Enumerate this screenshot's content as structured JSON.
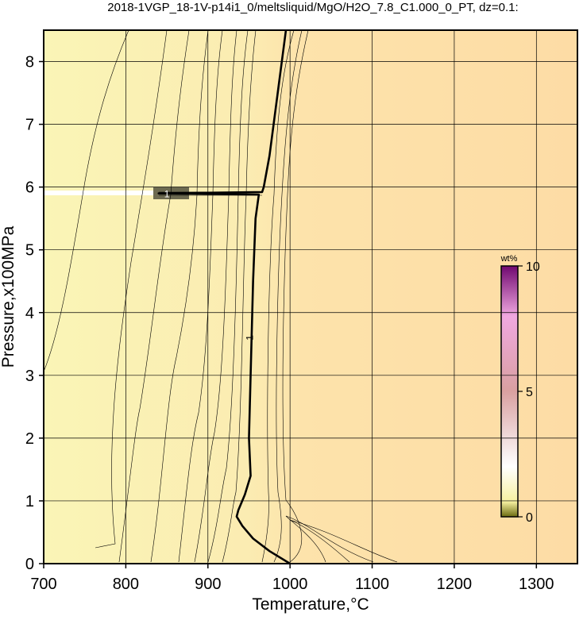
{
  "chart_data": {
    "type": "contour",
    "title": "2018-1VGP_18-1V-p14i1_0/meltsliquid/MgO/H2O_7.8_C1.000_0_PT, dz=0.1:",
    "x_label": "Temperature,°C",
    "y_label": "Pressure,x100MPa",
    "xlim": [
      700,
      1350
    ],
    "ylim": [
      0,
      8.5
    ],
    "xticks": [
      700,
      800,
      900,
      1000,
      1100,
      1200,
      1300
    ],
    "yticks": [
      0,
      1,
      2,
      3,
      4,
      5,
      6,
      7,
      8
    ],
    "grid": true,
    "level": 1,
    "series": [
      {
        "color": "#000000",
        "x": [
          995,
          985,
          975,
          968,
          966,
          900,
          840,
          900,
          962,
          958,
          955,
          953,
          951,
          950,
          952,
          945,
          937,
          935,
          942,
          955,
          975,
          1000
        ],
        "values": [
          8.5,
          7.5,
          6.5,
          6.0,
          5.92,
          5.91,
          5.9,
          5.89,
          5.88,
          5.5,
          4.5,
          3.5,
          2.5,
          2.0,
          1.4,
          1.1,
          0.85,
          0.75,
          0.6,
          0.4,
          0.2,
          0
        ]
      }
    ],
    "colorbar": {
      "label": "wt%",
      "lim": [
        0,
        10
      ],
      "ticks": [
        0,
        5,
        10
      ]
    }
  }
}
